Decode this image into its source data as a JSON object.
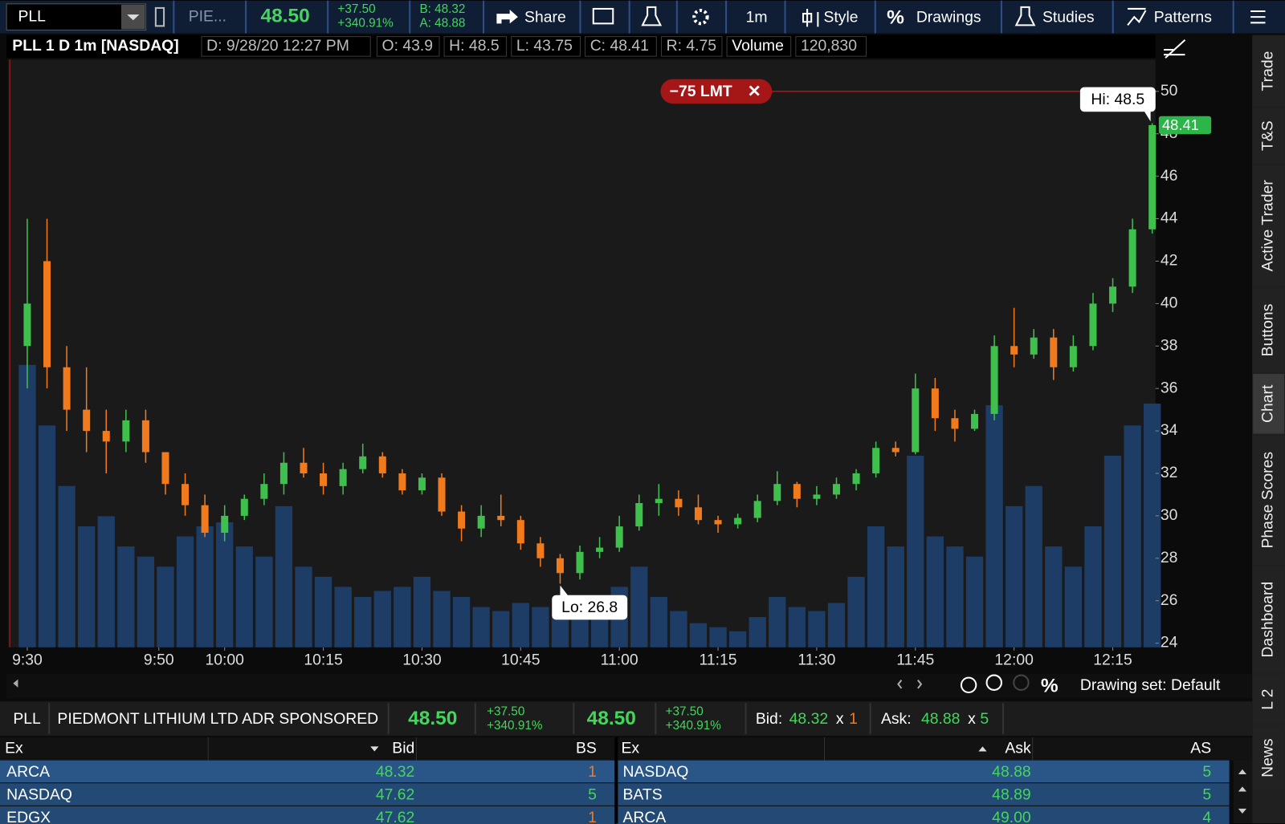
{
  "toolbar": {
    "symbol": "PLL",
    "description": "PIE...",
    "last": "48.50",
    "change": "+37.50",
    "change_pct": "+340.91%",
    "bid": "B: 48.32",
    "ask": "A: 48.88",
    "buttons": [
      "Share",
      "1m",
      "Style",
      "Drawings",
      "Studies",
      "Patterns"
    ]
  },
  "chart_header": {
    "title": "PLL 1 D 1m [NASDAQ]",
    "fields": [
      "D: 9/28/20 12:27 PM",
      "O: 43.9",
      "H: 48.5",
      "L: 43.75",
      "C: 48.41",
      "R: 4.75",
      "Volume",
      "120,830"
    ]
  },
  "chart_data": {
    "type": "candlestick",
    "x": [
      0,
      3,
      6,
      9,
      12,
      15,
      18,
      21,
      24,
      27,
      30,
      33,
      36,
      39,
      42,
      45,
      48,
      51,
      54,
      57,
      60,
      63,
      66,
      69,
      72,
      75,
      78,
      81,
      84,
      87,
      90,
      93,
      96,
      99,
      102,
      105,
      108,
      111,
      114,
      117,
      120,
      123,
      126,
      129,
      132,
      135,
      138,
      141,
      144,
      147,
      150,
      153,
      156,
      159,
      162,
      165,
      168,
      171
    ],
    "open": [
      38,
      42,
      37,
      35,
      34,
      33.5,
      34.5,
      33,
      31.5,
      30.5,
      29.2,
      30,
      30.8,
      31.5,
      32.5,
      32,
      31.4,
      32.2,
      32.8,
      32,
      31.2,
      31.8,
      30.2,
      29.4,
      30,
      29.8,
      28.7,
      28,
      27.3,
      28.3,
      28.5,
      29.5,
      30.6,
      30.8,
      30.4,
      29.8,
      29.6,
      29.9,
      30.7,
      31.5,
      30.8,
      31,
      31.5,
      32,
      33.2,
      33,
      36,
      34.6,
      34.1,
      34.8,
      38,
      37.6,
      38.4,
      37,
      38,
      40,
      40.8,
      43.5
    ],
    "high": [
      44,
      44,
      38,
      37,
      35,
      35,
      35,
      33,
      32,
      31,
      30.5,
      31,
      32,
      33,
      33.2,
      32.5,
      32.5,
      33.4,
      33,
      32.2,
      32,
      32,
      30.5,
      30.5,
      31,
      30,
      29,
      28.2,
      28.6,
      29,
      30,
      31,
      31.5,
      31.2,
      31,
      30,
      30.1,
      31,
      32.1,
      31.6,
      31.4,
      31.8,
      32.2,
      33.5,
      33.5,
      36.7,
      36.5,
      35,
      35,
      38.5,
      39.8,
      38.8,
      38.8,
      38.5,
      40.5,
      41.2,
      44,
      48.5
    ],
    "low": [
      36,
      36,
      34,
      33,
      32,
      33,
      32.5,
      31,
      30,
      29,
      28.8,
      29.8,
      30.5,
      31,
      31.8,
      31,
      31,
      32,
      31.8,
      31,
      31,
      30,
      28.8,
      29,
      29.5,
      28.4,
      27.6,
      26.8,
      27,
      28,
      28.3,
      29.3,
      30,
      30,
      29.6,
      29.2,
      29.4,
      29.7,
      30.5,
      30.4,
      30.5,
      30.8,
      31.2,
      31.8,
      32.8,
      32.9,
      34,
      33.5,
      34,
      34.5,
      37,
      37.4,
      36.4,
      36.8,
      37.8,
      39.6,
      40.5,
      43.3
    ],
    "close": [
      40,
      37,
      35,
      34,
      33.5,
      34.5,
      33,
      31.5,
      30.5,
      29.2,
      30,
      30.8,
      31.5,
      32.5,
      32,
      31.4,
      32.2,
      32.8,
      32,
      31.2,
      31.8,
      30.2,
      29.4,
      30,
      29.8,
      28.7,
      28,
      27.3,
      28.3,
      28.5,
      29.5,
      30.6,
      30.8,
      30.4,
      29.8,
      29.6,
      29.9,
      30.7,
      31.5,
      30.8,
      31,
      31.5,
      32,
      33.2,
      33,
      36,
      34.6,
      34.1,
      34.8,
      38,
      37.6,
      38.4,
      37,
      38,
      40,
      40.8,
      43.5,
      48.41
    ],
    "volume": [
      140000,
      110000,
      80000,
      60000,
      65000,
      50000,
      45000,
      40000,
      55000,
      60000,
      62000,
      50000,
      45000,
      70000,
      40000,
      35000,
      30000,
      25000,
      28000,
      30000,
      35000,
      28000,
      25000,
      20000,
      18000,
      22000,
      20000,
      15000,
      18000,
      20000,
      30000,
      40000,
      25000,
      18000,
      12000,
      10000,
      8000,
      15000,
      25000,
      20000,
      18000,
      22000,
      35000,
      60000,
      50000,
      95000,
      55000,
      50000,
      45000,
      120000,
      70000,
      80000,
      50000,
      40000,
      60000,
      95000,
      110000,
      120830
    ],
    "up_color": "#3fbf4c",
    "down_color": "#f07a1c",
    "volume_color": "#1d3d66",
    "xlim": [
      -2.9,
      171.5
    ],
    "xticks": [
      {
        "value": 0,
        "label": "9:30"
      },
      {
        "value": 20,
        "label": "9:50"
      },
      {
        "value": 30,
        "label": "10:00"
      },
      {
        "value": 45,
        "label": "10:15"
      },
      {
        "value": 60,
        "label": "10:30"
      },
      {
        "value": 75,
        "label": "10:45"
      },
      {
        "value": 90,
        "label": "11:00"
      },
      {
        "value": 105,
        "label": "11:15"
      },
      {
        "value": 120,
        "label": "11:30"
      },
      {
        "value": 135,
        "label": "11:45"
      },
      {
        "value": 150,
        "label": "12:00"
      },
      {
        "value": 165,
        "label": "12:15"
      }
    ],
    "ylim": [
      23.8,
      51.5
    ],
    "yticks": [
      24,
      26,
      28,
      30,
      32,
      34,
      36,
      38,
      40,
      42,
      44,
      46,
      48,
      50
    ],
    "annotations": {
      "hi": "Hi: 48.5",
      "lo": "Lo: 26.8",
      "last": "48.41",
      "order": {
        "label": "−75 LMT",
        "price": 50
      }
    }
  },
  "chart_footer": {
    "drawing_set": "Drawing set: Default"
  },
  "quote": {
    "symbol": "PLL",
    "name": "PIEDMONT LITHIUM LTD ADR SPONSORED",
    "last": "48.50",
    "change": "+37.50",
    "change_pct": "+340.91%",
    "last2": "48.50",
    "change2": "+37.50",
    "change_pct2": "+340.91%",
    "bid_label": "Bid:",
    "bid": "48.32",
    "bid_sep": "x",
    "bid_size": "1",
    "ask_label": "Ask:",
    "ask": "48.88",
    "ask_sep": "x",
    "ask_size": "5"
  },
  "level2": {
    "bid_headers": [
      "Ex",
      "Bid",
      "BS"
    ],
    "ask_headers": [
      "Ex",
      "Ask",
      "AS"
    ],
    "bids": [
      [
        "ARCA",
        "48.32",
        "1"
      ],
      [
        "NASDAQ",
        "47.62",
        "5"
      ],
      [
        "EDGX",
        "47.62",
        "1"
      ]
    ],
    "asks": [
      [
        "NASDAQ",
        "48.88",
        "5"
      ],
      [
        "BATS",
        "48.89",
        "5"
      ],
      [
        "ARCA",
        "49.00",
        "4"
      ]
    ]
  },
  "side_tabs": [
    "Trade",
    "T&S",
    "Active Trader",
    "Buttons",
    "Chart",
    "Phase Scores",
    "Dashboard",
    "L 2",
    "News"
  ]
}
